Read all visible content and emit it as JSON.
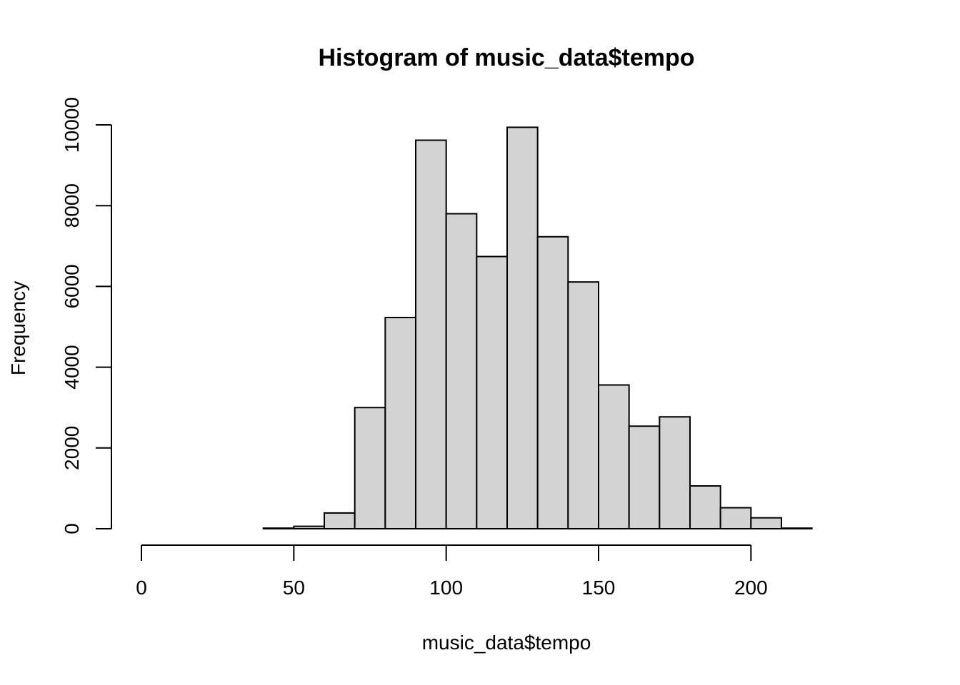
{
  "chart_data": {
    "type": "bar",
    "title": "Histogram of music_data$tempo",
    "xlabel": "music_data$tempo",
    "ylabel": "Frequency",
    "bar_color": "#d3d3d3",
    "border_color": "#000000",
    "bin_edges": [
      0,
      10,
      20,
      30,
      40,
      50,
      60,
      70,
      80,
      90,
      100,
      110,
      120,
      130,
      140,
      150,
      160,
      170,
      180,
      190,
      200,
      210,
      220,
      230,
      240
    ],
    "values": [
      0,
      0,
      0,
      0,
      15,
      60,
      390,
      3000,
      5230,
      9620,
      7800,
      6740,
      9940,
      7230,
      6110,
      3560,
      2540,
      2770,
      1060,
      520,
      270,
      15,
      0,
      0
    ],
    "xlim": [
      0,
      240
    ],
    "ylim": [
      0,
      10000
    ],
    "x_ticks": [
      0,
      50,
      100,
      150,
      200
    ],
    "y_ticks": [
      0,
      2000,
      4000,
      6000,
      8000,
      10000
    ],
    "x_tick_labels": [
      "0",
      "50",
      "100",
      "150",
      "200"
    ],
    "y_tick_labels": [
      "0",
      "2000",
      "4000",
      "6000",
      "8000",
      "10000"
    ],
    "grid": false,
    "legend": "none"
  }
}
